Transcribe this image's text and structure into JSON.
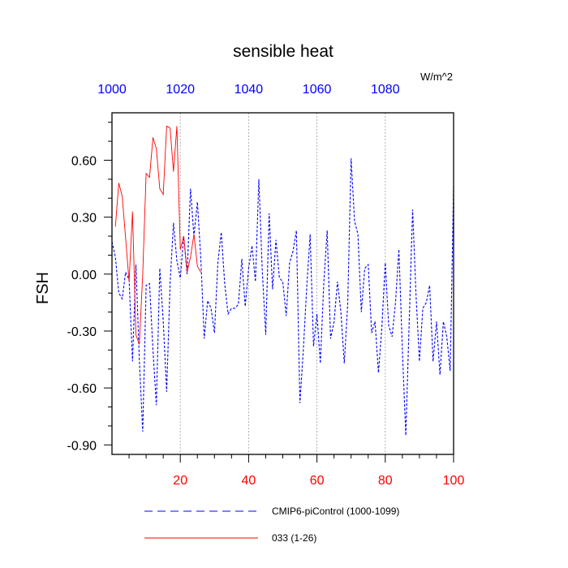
{
  "chart_data": {
    "type": "line",
    "title": "sensible heat",
    "units": "W/m^2",
    "ylabel": "FSH",
    "ylim": [
      -0.95,
      0.85
    ],
    "yticks": [
      "0.60",
      "0.30",
      "0.00",
      "-0.30",
      "-0.60",
      "-0.90"
    ],
    "ytick_values": [
      0.6,
      0.3,
      0.0,
      -0.3,
      -0.6,
      -0.9
    ],
    "bottom_axis": {
      "range": [
        0,
        100
      ],
      "ticks": [
        "20",
        "40",
        "60",
        "80",
        "100"
      ],
      "tick_values": [
        20,
        40,
        60,
        80,
        100
      ],
      "color": "#ff0000"
    },
    "top_axis": {
      "range": [
        1000,
        1100
      ],
      "ticks": [
        "1000",
        "1020",
        "1040",
        "1060",
        "1080"
      ],
      "tick_values": [
        1000,
        1020,
        1040,
        1060,
        1080
      ],
      "color": "#0000ff"
    },
    "grid": "vertical dashed at labeled bottom ticks",
    "legend_position": "bottom",
    "series": [
      {
        "name": "CMIP6-piControl (1000-1099)",
        "color": "#0000ff",
        "style": "dashed",
        "axis": "top",
        "x": [
          1000,
          1001,
          1002,
          1003,
          1004,
          1005,
          1006,
          1007,
          1008,
          1009,
          1010,
          1011,
          1012,
          1013,
          1014,
          1015,
          1016,
          1017,
          1018,
          1019,
          1020,
          1021,
          1022,
          1023,
          1024,
          1025,
          1026,
          1027,
          1028,
          1029,
          1030,
          1031,
          1032,
          1033,
          1034,
          1035,
          1036,
          1037,
          1038,
          1039,
          1040,
          1041,
          1042,
          1043,
          1044,
          1045,
          1046,
          1047,
          1048,
          1049,
          1050,
          1051,
          1052,
          1053,
          1054,
          1055,
          1056,
          1057,
          1058,
          1059,
          1060,
          1061,
          1062,
          1063,
          1064,
          1065,
          1066,
          1067,
          1068,
          1069,
          1070,
          1071,
          1072,
          1073,
          1074,
          1075,
          1076,
          1077,
          1078,
          1079,
          1080,
          1081,
          1082,
          1083,
          1084,
          1085,
          1086,
          1087,
          1088,
          1089,
          1090,
          1091,
          1092,
          1093,
          1094,
          1095,
          1096,
          1097,
          1098,
          1099,
          1100
        ],
        "values": [
          0.17,
          0.09,
          -0.1,
          -0.13,
          0.01,
          -0.03,
          -0.46,
          0.05,
          -0.45,
          -0.83,
          -0.06,
          -0.05,
          -0.4,
          -0.69,
          0.03,
          -0.25,
          -0.62,
          -0.05,
          0.27,
          0.07,
          -0.02,
          0.2,
          0.0,
          0.45,
          0.2,
          0.38,
          0.08,
          -0.34,
          -0.14,
          -0.18,
          -0.31,
          0.06,
          0.22,
          -0.05,
          -0.21,
          -0.18,
          -0.18,
          -0.16,
          0.08,
          -0.17,
          0.03,
          0.15,
          -0.04,
          0.5,
          0.02,
          -0.32,
          0.32,
          -0.08,
          0.18,
          -0.02,
          -0.04,
          -0.22,
          0.06,
          0.12,
          0.23,
          -0.68,
          -0.4,
          -0.07,
          0.21,
          -0.38,
          -0.21,
          -0.47,
          -0.05,
          0.23,
          -0.34,
          -0.25,
          -0.04,
          -0.2,
          -0.47,
          -0.16,
          0.61,
          0.28,
          0.21,
          -0.2,
          0.03,
          0.05,
          -0.31,
          -0.25,
          -0.52,
          -0.28,
          0.06,
          -0.27,
          -0.33,
          -0.15,
          0.13,
          -0.39,
          -0.85,
          -0.25,
          0.34,
          -0.11,
          -0.46,
          -0.18,
          -0.15,
          -0.06,
          -0.46,
          -0.25,
          -0.53,
          -0.25,
          -0.33,
          -0.51,
          0.47
        ]
      },
      {
        "name": "033 (1-26)",
        "color": "#ff0000",
        "style": "solid",
        "axis": "bottom",
        "x": [
          1,
          2,
          3,
          4,
          5,
          6,
          7,
          8,
          9,
          10,
          11,
          12,
          13,
          14,
          15,
          16,
          17,
          18,
          19,
          20,
          21,
          22,
          23,
          24,
          25,
          26
        ],
        "values": [
          0.25,
          0.48,
          0.41,
          0.19,
          -0.04,
          0.33,
          -0.32,
          -0.37,
          0.0,
          0.53,
          0.51,
          0.72,
          0.66,
          0.45,
          0.42,
          0.78,
          0.77,
          0.54,
          0.78,
          0.13,
          0.2,
          0.01,
          0.09,
          0.21,
          0.04,
          0.01
        ]
      }
    ]
  }
}
